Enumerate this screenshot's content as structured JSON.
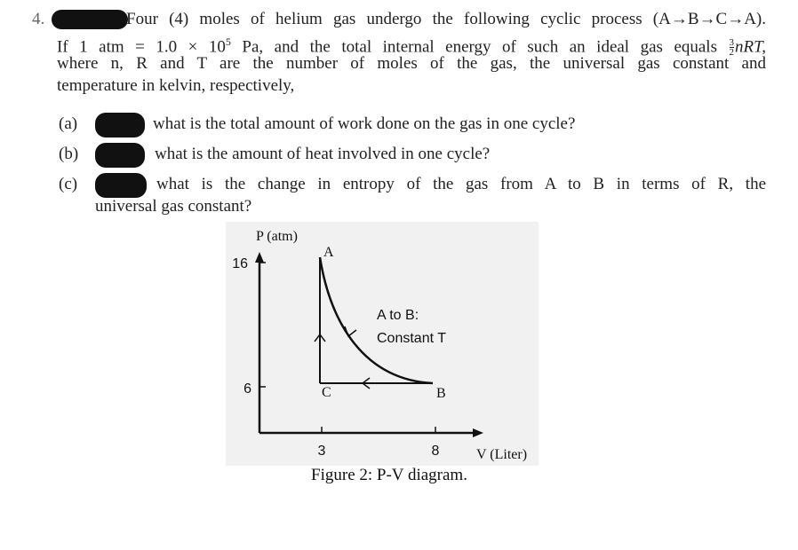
{
  "question": {
    "number": "4.",
    "intro": {
      "line1": "Four (4) moles of helium gas undergo the following cyclic process (A→B→C→A).",
      "line2_start": "If 1 atm = 1.0 × 10",
      "line2_exponent": "5",
      "line2_middle": "Pa, and the total internal energy of such an ideal gas equals",
      "line2_fraction_numerator": "3",
      "line2_fraction_denominator": "2",
      "line2_end": "nRT,",
      "line3": "where n, R and T are the number of moles of the gas, the universal gas constant and",
      "line4": "temperature in kelvin, respectively,"
    },
    "parts": [
      {
        "label": "(a)",
        "text": "what is the total amount of work done on the gas in one cycle?"
      },
      {
        "label": "(b)",
        "text": "what is the amount of heat involved in one cycle?"
      },
      {
        "label": "(c)",
        "text": "what is the change in entropy of the gas from A to B in terms of R, the",
        "continuation": "universal gas constant?"
      }
    ]
  },
  "figure": {
    "y_axis_label": "P (atm)",
    "x_axis_label": "V (Liter)",
    "y_tick_labels": [
      "16",
      "6"
    ],
    "x_tick_labels": [
      "3",
      "8"
    ],
    "point_labels": [
      "A",
      "B",
      "C"
    ],
    "annotation": [
      "A to B:",
      "Constant T"
    ],
    "caption": "Figure 2: P-V diagram."
  }
}
